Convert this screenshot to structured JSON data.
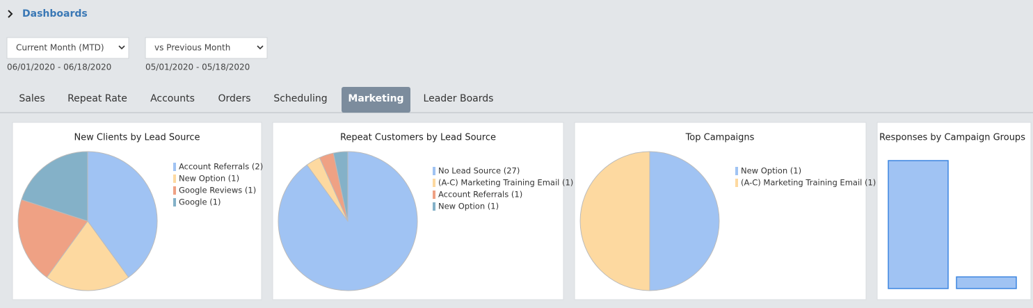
{
  "breadcrumb": "Dashboards",
  "filters": [
    {
      "selected": "Current Month (MTD)",
      "range": "06/01/2020 - 06/18/2020"
    },
    {
      "selected": "vs Previous Month",
      "range": "05/01/2020 - 05/18/2020"
    }
  ],
  "tabs": [
    "Sales",
    "Repeat Rate",
    "Accounts",
    "Orders",
    "Scheduling",
    "Marketing",
    "Leader Boards"
  ],
  "active_tab": 5,
  "chart_data": [
    {
      "type": "pie",
      "title": "New Clients by Lead Source",
      "categories": [
        "Account Referrals (2)",
        "New Option (1)",
        "Google Reviews (1)",
        "Google (1)"
      ],
      "values": [
        2,
        1,
        1,
        1
      ],
      "colors": [
        "#a0c3f3",
        "#fdd9a0",
        "#efa184",
        "#84b1c8"
      ]
    },
    {
      "type": "pie",
      "title": "Repeat Customers by Lead Source",
      "categories": [
        "No Lead Source (27)",
        "(A-C) Marketing Training Email (1)",
        "Account Referrals (1)",
        "New Option (1)"
      ],
      "values": [
        27,
        1,
        1,
        1
      ],
      "colors": [
        "#a0c3f3",
        "#fdd9a0",
        "#efa184",
        "#84b1c8"
      ]
    },
    {
      "type": "pie",
      "title": "Top Campaigns",
      "categories": [
        "New Option (1)",
        "(A-C) Marketing Training Email (1)"
      ],
      "values": [
        1,
        1
      ],
      "colors": [
        "#a0c3f3",
        "#fdd9a0"
      ]
    },
    {
      "type": "bar",
      "title": "Responses by Campaign Groups",
      "categories": [
        null,
        null
      ],
      "values": [
        11,
        1
      ],
      "color": "#a0c3f3"
    }
  ]
}
